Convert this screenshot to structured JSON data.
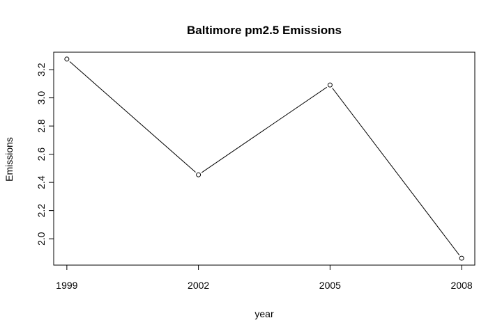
{
  "chart_data": {
    "type": "line",
    "title": "Baltimore pm2.5 Emissions",
    "xlabel": "year",
    "ylabel": "Emissions",
    "x": [
      1999,
      2002,
      2005,
      2008
    ],
    "y": [
      3.275,
      2.454,
      3.091,
      1.862
    ],
    "xticks": [
      "1999",
      "2002",
      "2005",
      "2008"
    ],
    "yticks": [
      "2.0",
      "2.2",
      "2.4",
      "2.6",
      "2.8",
      "3.0",
      "3.2"
    ],
    "xlim": [
      1998.7,
      2008.3
    ],
    "ylim": [
      1.813,
      3.324
    ],
    "marker": "open-circle",
    "grid": false,
    "legend": "none",
    "line_color": "#000000"
  }
}
